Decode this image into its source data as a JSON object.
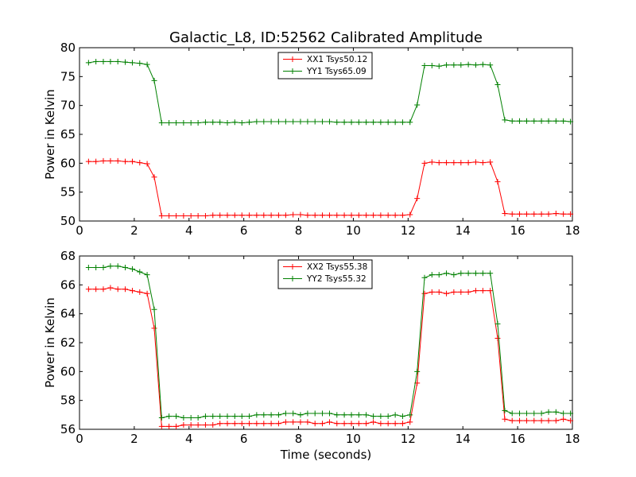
{
  "figure": {
    "title": "Galactic_L8, ID:52562 Calibrated Amplitude"
  },
  "chart_data": [
    {
      "type": "line",
      "title": "Galactic_L8, ID:52562 Calibrated Amplitude",
      "xlabel": "",
      "ylabel": "Power in Kelvin",
      "xlim": [
        0,
        18
      ],
      "ylim": [
        50,
        80
      ],
      "xticks": [
        "0",
        "2",
        "4",
        "6",
        "8",
        "10",
        "12",
        "14",
        "16",
        "18"
      ],
      "yticks": [
        "50",
        "55",
        "60",
        "65",
        "70",
        "75",
        "80"
      ],
      "grid": false,
      "legend_position": "top-center",
      "marker": "+",
      "x": [
        0.33,
        0.6,
        0.87,
        1.13,
        1.4,
        1.67,
        1.93,
        2.2,
        2.47,
        2.73,
        3.0,
        3.27,
        3.53,
        3.8,
        4.07,
        4.33,
        4.6,
        4.87,
        5.13,
        5.4,
        5.67,
        5.93,
        6.2,
        6.47,
        6.73,
        7.0,
        7.27,
        7.53,
        7.8,
        8.07,
        8.33,
        8.6,
        8.87,
        9.13,
        9.4,
        9.67,
        9.93,
        10.2,
        10.47,
        10.73,
        11.0,
        11.27,
        11.53,
        11.8,
        12.07,
        12.33,
        12.6,
        12.87,
        13.13,
        13.4,
        13.67,
        13.93,
        14.2,
        14.47,
        14.73,
        15.0,
        15.27,
        15.53,
        15.8,
        16.07,
        16.33,
        16.6,
        16.87,
        17.13,
        17.4,
        17.67,
        17.93
      ],
      "series": [
        {
          "name": "XX1 Tsys50.12",
          "color": "#ff0000",
          "values": [
            60.3,
            60.3,
            60.4,
            60.4,
            60.4,
            60.3,
            60.3,
            60.1,
            59.9,
            57.6,
            50.9,
            50.9,
            50.9,
            50.9,
            50.9,
            50.9,
            50.9,
            51.0,
            51.0,
            51.0,
            51.0,
            51.0,
            51.0,
            51.0,
            51.0,
            51.0,
            51.0,
            51.0,
            51.1,
            51.1,
            51.0,
            51.0,
            51.0,
            51.0,
            51.0,
            51.0,
            51.0,
            51.0,
            51.0,
            51.0,
            51.0,
            51.0,
            51.0,
            51.0,
            51.1,
            53.9,
            60.0,
            60.2,
            60.1,
            60.1,
            60.1,
            60.1,
            60.1,
            60.2,
            60.1,
            60.2,
            56.8,
            51.3,
            51.2,
            51.2,
            51.2,
            51.2,
            51.2,
            51.2,
            51.3,
            51.2,
            51.2
          ]
        },
        {
          "name": "YY1 Tsys65.09",
          "color": "#008000",
          "values": [
            77.4,
            77.6,
            77.6,
            77.6,
            77.6,
            77.5,
            77.4,
            77.3,
            77.1,
            74.3,
            67.0,
            67.0,
            67.0,
            67.0,
            67.0,
            67.0,
            67.1,
            67.1,
            67.1,
            67.0,
            67.1,
            67.0,
            67.1,
            67.2,
            67.2,
            67.2,
            67.2,
            67.2,
            67.2,
            67.2,
            67.2,
            67.2,
            67.2,
            67.2,
            67.1,
            67.1,
            67.1,
            67.1,
            67.1,
            67.1,
            67.1,
            67.1,
            67.1,
            67.1,
            67.1,
            70.1,
            76.9,
            76.9,
            76.8,
            77.0,
            77.0,
            77.0,
            77.1,
            77.0,
            77.1,
            77.0,
            73.6,
            67.5,
            67.3,
            67.3,
            67.3,
            67.3,
            67.3,
            67.3,
            67.3,
            67.3,
            67.2
          ]
        }
      ]
    },
    {
      "type": "line",
      "title": "",
      "xlabel": "Time (seconds)",
      "ylabel": "Power in Kelvin",
      "xlim": [
        0,
        18
      ],
      "ylim": [
        56,
        68
      ],
      "xticks": [
        "0",
        "2",
        "4",
        "6",
        "8",
        "10",
        "12",
        "14",
        "16",
        "18"
      ],
      "yticks": [
        "56",
        "58",
        "60",
        "62",
        "64",
        "66",
        "68"
      ],
      "grid": false,
      "legend_position": "top-center",
      "marker": "+",
      "x": [
        0.33,
        0.6,
        0.87,
        1.13,
        1.4,
        1.67,
        1.93,
        2.2,
        2.47,
        2.73,
        3.0,
        3.27,
        3.53,
        3.8,
        4.07,
        4.33,
        4.6,
        4.87,
        5.13,
        5.4,
        5.67,
        5.93,
        6.2,
        6.47,
        6.73,
        7.0,
        7.27,
        7.53,
        7.8,
        8.07,
        8.33,
        8.6,
        8.87,
        9.13,
        9.4,
        9.67,
        9.93,
        10.2,
        10.47,
        10.73,
        11.0,
        11.27,
        11.53,
        11.8,
        12.07,
        12.33,
        12.6,
        12.87,
        13.13,
        13.4,
        13.67,
        13.93,
        14.2,
        14.47,
        14.73,
        15.0,
        15.27,
        15.53,
        15.8,
        16.07,
        16.33,
        16.6,
        16.87,
        17.13,
        17.4,
        17.67,
        17.93
      ],
      "series": [
        {
          "name": "XX2 Tsys55.38",
          "color": "#ff0000",
          "values": [
            65.7,
            65.7,
            65.7,
            65.8,
            65.7,
            65.7,
            65.6,
            65.5,
            65.4,
            63.0,
            56.2,
            56.2,
            56.2,
            56.3,
            56.3,
            56.3,
            56.3,
            56.3,
            56.4,
            56.4,
            56.4,
            56.4,
            56.4,
            56.4,
            56.4,
            56.4,
            56.4,
            56.5,
            56.5,
            56.5,
            56.5,
            56.4,
            56.4,
            56.5,
            56.4,
            56.4,
            56.4,
            56.4,
            56.4,
            56.5,
            56.4,
            56.4,
            56.4,
            56.4,
            56.5,
            59.2,
            65.4,
            65.5,
            65.5,
            65.4,
            65.5,
            65.5,
            65.5,
            65.6,
            65.6,
            65.6,
            62.3,
            56.7,
            56.6,
            56.6,
            56.6,
            56.6,
            56.6,
            56.6,
            56.6,
            56.7,
            56.6
          ]
        },
        {
          "name": "YY2 Tsys55.32",
          "color": "#008000",
          "values": [
            67.2,
            67.2,
            67.2,
            67.3,
            67.3,
            67.2,
            67.1,
            66.9,
            66.7,
            64.3,
            56.8,
            56.9,
            56.9,
            56.8,
            56.8,
            56.8,
            56.9,
            56.9,
            56.9,
            56.9,
            56.9,
            56.9,
            56.9,
            57.0,
            57.0,
            57.0,
            57.0,
            57.1,
            57.1,
            57.0,
            57.1,
            57.1,
            57.1,
            57.1,
            57.0,
            57.0,
            57.0,
            57.0,
            57.0,
            56.9,
            56.9,
            56.9,
            57.0,
            56.9,
            57.0,
            60.0,
            66.5,
            66.7,
            66.7,
            66.8,
            66.7,
            66.8,
            66.8,
            66.8,
            66.8,
            66.8,
            63.3,
            57.3,
            57.1,
            57.1,
            57.1,
            57.1,
            57.1,
            57.2,
            57.2,
            57.1,
            57.1
          ]
        }
      ]
    }
  ]
}
